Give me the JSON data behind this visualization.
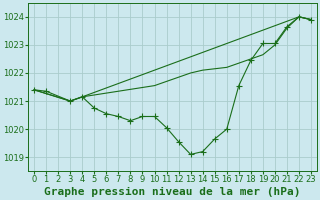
{
  "background_color": "#cce8ee",
  "grid_color": "#aacccc",
  "line_color": "#1a6e1a",
  "title": "Graphe pression niveau de la mer (hPa)",
  "xlim": [
    -0.5,
    23.5
  ],
  "ylim": [
    1018.5,
    1024.5
  ],
  "yticks": [
    1019,
    1020,
    1021,
    1022,
    1023,
    1024
  ],
  "xticks": [
    0,
    1,
    2,
    3,
    4,
    5,
    6,
    7,
    8,
    9,
    10,
    11,
    12,
    13,
    14,
    15,
    16,
    17,
    18,
    19,
    20,
    21,
    22,
    23
  ],
  "line1_x": [
    0,
    1,
    3,
    4,
    5,
    6,
    7,
    8,
    9,
    10,
    11,
    12,
    13,
    14,
    15,
    16,
    17,
    18,
    19,
    20,
    21,
    22,
    23
  ],
  "line1_y": [
    1021.4,
    1021.35,
    1021.0,
    1021.15,
    1020.75,
    1020.55,
    1020.45,
    1020.3,
    1020.45,
    1020.45,
    1020.05,
    1019.55,
    1019.1,
    1019.2,
    1019.65,
    1020.0,
    1021.55,
    1022.45,
    1023.05,
    1023.05,
    1023.65,
    1024.0,
    1023.9
  ],
  "line2_x": [
    0,
    3,
    4,
    10,
    11,
    12,
    13,
    14,
    15,
    16,
    17,
    18,
    19,
    20,
    21,
    22,
    23
  ],
  "line2_y": [
    1021.4,
    1021.0,
    1021.15,
    1021.55,
    1021.7,
    1021.85,
    1022.0,
    1022.1,
    1022.15,
    1022.2,
    1022.35,
    1022.5,
    1022.65,
    1023.0,
    1023.6,
    1024.0,
    1023.9
  ],
  "line3_x": [
    0,
    3,
    4,
    22,
    23
  ],
  "line3_y": [
    1021.4,
    1021.0,
    1021.15,
    1024.0,
    1023.9
  ],
  "title_fontsize": 8,
  "tick_fontsize": 6
}
